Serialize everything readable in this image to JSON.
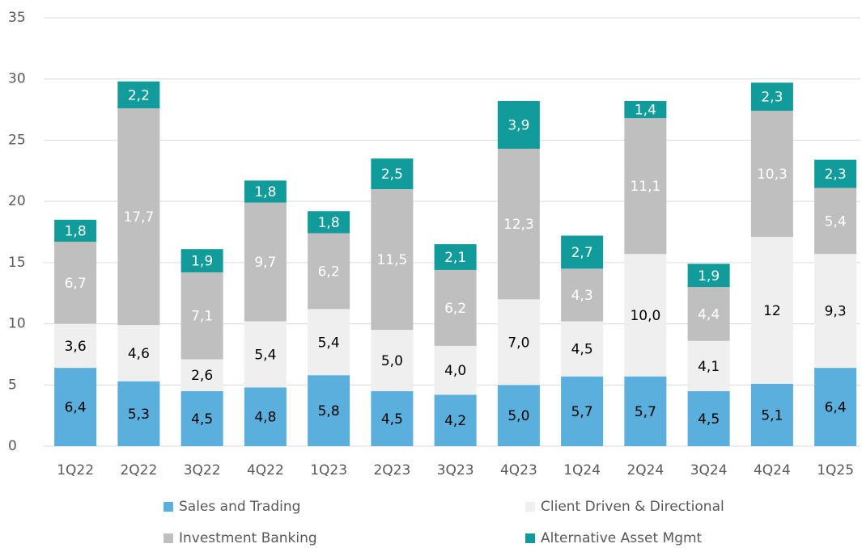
{
  "chart_data": {
    "type": "stacked_bar",
    "categories": [
      "1Q22",
      "2Q22",
      "3Q22",
      "4Q22",
      "1Q23",
      "2Q23",
      "3Q23",
      "4Q23",
      "1Q24",
      "2Q24",
      "3Q24",
      "4Q24",
      "1Q25"
    ],
    "series": [
      {
        "name": "Sales and Trading",
        "color": "#5aafdc",
        "label_color": "#000000",
        "values": [
          6.4,
          5.3,
          4.5,
          4.8,
          5.8,
          4.5,
          4.2,
          5.0,
          5.7,
          5.7,
          4.5,
          5.1,
          6.4
        ],
        "value_labels": [
          "6,4",
          "5,3",
          "4,5",
          "4,8",
          "5,8",
          "4,5",
          "4,2",
          "5,0",
          "5,7",
          "5,7",
          "4,5",
          "5,1",
          "6,4"
        ]
      },
      {
        "name": "Client Driven & Directional",
        "color": "#efefef",
        "label_color": "#000000",
        "values": [
          3.6,
          4.6,
          2.6,
          5.4,
          5.4,
          5.0,
          4.0,
          7.0,
          4.5,
          10.0,
          4.1,
          12,
          9.3
        ],
        "value_labels": [
          "3,6",
          "4,6",
          "2,6",
          "5,4",
          "5,4",
          "5,0",
          "4,0",
          "7,0",
          "4,5",
          "10,0",
          "4,1",
          "12",
          "9,3"
        ]
      },
      {
        "name": "Investment Banking",
        "color": "#bfbfbf",
        "label_color": "#ffffff",
        "values": [
          6.7,
          17.7,
          7.1,
          9.7,
          6.2,
          11.5,
          6.2,
          12.3,
          4.3,
          11.1,
          4.4,
          10.3,
          5.4
        ],
        "value_labels": [
          "6,7",
          "17,7",
          "7,1",
          "9,7",
          "6,2",
          "11,5",
          "6,2",
          "12,3",
          "4,3",
          "11,1",
          "4,4",
          "10,3",
          "5,4"
        ]
      },
      {
        "name": "Alternative Asset Mgmt",
        "color": "#119b9b",
        "label_color": "#ffffff",
        "values": [
          1.8,
          2.2,
          1.9,
          1.8,
          1.8,
          2.5,
          2.1,
          3.9,
          2.7,
          1.4,
          1.9,
          2.3,
          2.3
        ],
        "value_labels": [
          "1,8",
          "2,2",
          "1,9",
          "1,8",
          "1,8",
          "2,5",
          "2,1",
          "3,9",
          "2,7",
          "1,4",
          "1,9",
          "2,3",
          "2,3"
        ]
      }
    ],
    "ylim": [
      0,
      35
    ],
    "yticks": [
      0,
      5,
      10,
      15,
      20,
      25,
      30,
      35
    ],
    "grid": true
  }
}
